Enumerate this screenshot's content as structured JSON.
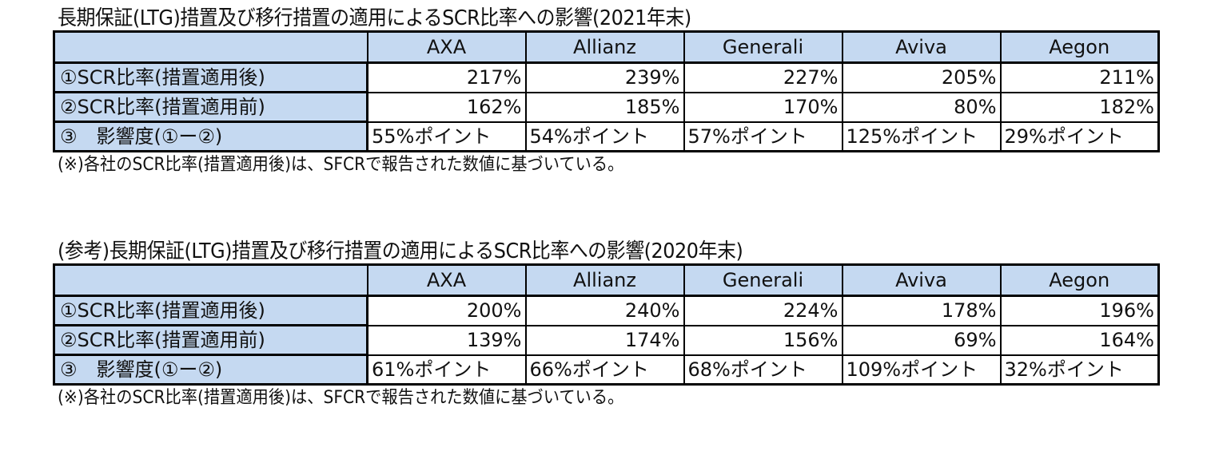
{
  "tables": [
    {
      "title": "長期保証(LTG)措置及び移行措置の適用によるSCR比率への影響(2021年末)",
      "header": [
        "",
        "AXA",
        "Allianz",
        "Generali",
        "Aviva",
        "Aegon"
      ],
      "rows": [
        {
          "label": "①SCR比率(措置適用後)",
          "values": [
            "217%",
            "239%",
            "227%",
            "205%",
            "211%"
          ]
        },
        {
          "label": "②SCR比率(措置適用前)",
          "values": [
            "162%",
            "185%",
            "170%",
            "80%",
            "182%"
          ]
        },
        {
          "label": "③　影響度(①ー②)",
          "values": [
            "55%ポイント",
            "54%ポイント",
            "57%ポイント",
            "125%ポイント",
            "29%ポイント"
          ]
        }
      ],
      "note": "(※)各社のSCR比率(措置適用後)は、SFCRで報告された数値に基づいている。"
    },
    {
      "title": "(参考)長期保証(LTG)措置及び移行措置の適用によるSCR比率への影響(2020年末)",
      "header": [
        "",
        "AXA",
        "Allianz",
        "Generali",
        "Aviva",
        "Aegon"
      ],
      "rows": [
        {
          "label": "①SCR比率(措置適用後)",
          "values": [
            "200%",
            "240%",
            "224%",
            "178%",
            "196%"
          ]
        },
        {
          "label": "②SCR比率(措置適用前)",
          "values": [
            "139%",
            "174%",
            "156%",
            "69%",
            "164%"
          ]
        },
        {
          "label": "③　影響度(①ー②)",
          "values": [
            "61%ポイント",
            "66%ポイント",
            "68%ポイント",
            "109%ポイント",
            "32%ポイント"
          ]
        }
      ],
      "note": "(※)各社のSCR比率(措置適用後)は、SFCRで報告された数値に基づいている。"
    }
  ],
  "colors": {
    "header_fill": "#c5d9f1",
    "border": "#000000"
  }
}
